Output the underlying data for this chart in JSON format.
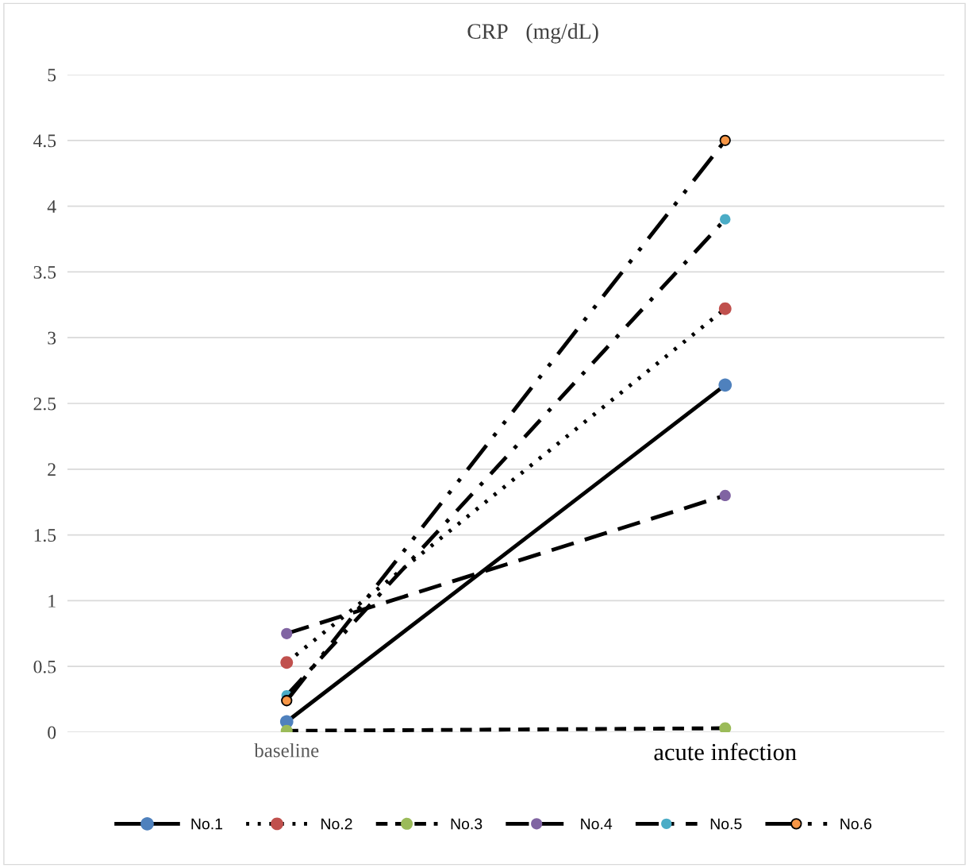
{
  "chart_data": {
    "type": "line",
    "title": "CRP　(mg/dL)",
    "categories": [
      "baseline",
      "acute infection"
    ],
    "ylim": [
      0,
      5
    ],
    "yticks": [
      0,
      0.5,
      1,
      1.5,
      2,
      2.5,
      3,
      3.5,
      4,
      4.5,
      5
    ],
    "grid": "y",
    "legend": "bottom",
    "marker": "circle",
    "series": [
      {
        "name": "No.1",
        "color": "#4f81bd",
        "line_style": "solid",
        "values": [
          0.08,
          2.64
        ]
      },
      {
        "name": "No.2",
        "color": "#c0504d",
        "line_style": "dotted",
        "values": [
          0.53,
          3.22
        ]
      },
      {
        "name": "No.3",
        "color": "#9bbb59",
        "line_style": "dashed",
        "values": [
          0.01,
          0.03
        ]
      },
      {
        "name": "No.4",
        "color": "#8064a2",
        "line_style": "longdash",
        "values": [
          0.75,
          1.8
        ]
      },
      {
        "name": "No.5",
        "color": "#4bacc6",
        "line_style": "dashdot",
        "values": [
          0.28,
          3.9
        ]
      },
      {
        "name": "No.6",
        "color": "#f79646",
        "line_style": "longdashdotdot",
        "values": [
          0.24,
          4.5
        ]
      }
    ]
  }
}
